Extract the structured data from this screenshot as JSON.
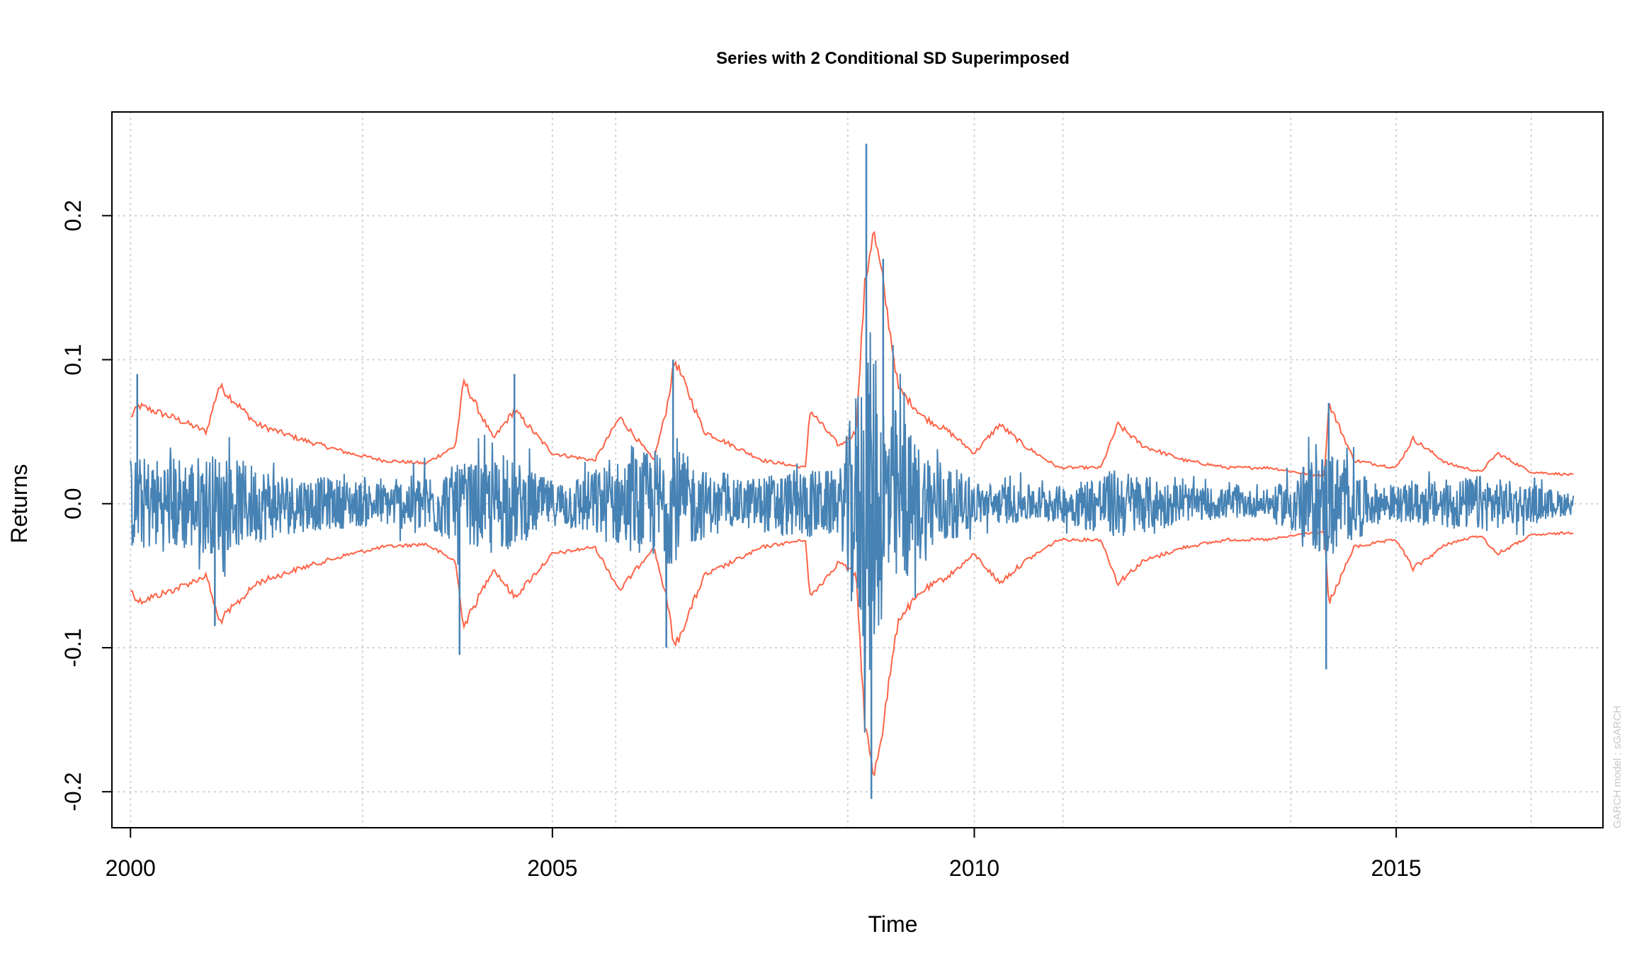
{
  "chart_data": {
    "type": "line",
    "title": "Series with 2 Conditional SD Superimposed",
    "xlabel": "Time",
    "ylabel": "Returns",
    "xlim": [
      1999.78,
      2017.45
    ],
    "ylim": [
      -0.225,
      0.272
    ],
    "x_ticks": [
      2000,
      2005,
      2010,
      2015
    ],
    "x_tick_labels": [
      "2000",
      "2005",
      "2010",
      "2015"
    ],
    "y_ticks": [
      -0.2,
      -0.1,
      0.0,
      0.1,
      0.2
    ],
    "y_tick_labels": [
      "-0.2",
      "-0.1",
      "0.0",
      "0.1",
      "0.2"
    ],
    "x_grid": [
      2000,
      2002.75,
      2005,
      2005.75,
      2008.5,
      2010,
      2011.05,
      2013.75,
      2015,
      2016.6
    ],
    "y_grid": [
      -0.2,
      -0.1,
      0.0,
      0.1,
      0.2
    ],
    "grid": true,
    "watermark": "GARCH model : sGARCH",
    "series": [
      {
        "role": "returns",
        "color": "#4682B4",
        "x": [
          2000.0,
          2001.0,
          2002.0,
          2003.0,
          2003.9,
          2004.5,
          2005.0,
          2006.4,
          2007.0,
          2008.0,
          2008.4,
          2008.75,
          2008.9,
          2009.3,
          2010.0,
          2011.0,
          2011.7,
          2012.5,
          2013.5,
          2014.2,
          2014.7,
          2015.0,
          2016.0,
          2017.1
        ],
        "amplitude": [
          0.065,
          0.07,
          0.04,
          0.03,
          0.055,
          0.065,
          0.03,
          0.085,
          0.03,
          0.05,
          0.045,
          0.25,
          0.17,
          0.09,
          0.03,
          0.025,
          0.05,
          0.025,
          0.018,
          0.08,
          0.03,
          0.025,
          0.04,
          0.015
        ],
        "extremes": [
          {
            "x": 2000.08,
            "y": 0.09
          },
          {
            "x": 2001.0,
            "y": -0.085
          },
          {
            "x": 2003.9,
            "y": -0.105
          },
          {
            "x": 2004.55,
            "y": 0.09
          },
          {
            "x": 2006.35,
            "y": -0.1
          },
          {
            "x": 2006.43,
            "y": 0.1
          },
          {
            "x": 2008.72,
            "y": 0.25
          },
          {
            "x": 2008.78,
            "y": -0.205
          },
          {
            "x": 2008.92,
            "y": 0.17
          },
          {
            "x": 2014.17,
            "y": -0.115
          },
          {
            "x": 2014.2,
            "y": 0.07
          }
        ]
      },
      {
        "role": "2 conditional SD",
        "color": "#FF6347",
        "x": [
          2000.0,
          2000.1,
          2000.5,
          2000.9,
          2001.05,
          2001.5,
          2002.0,
          2002.6,
          2003.0,
          2003.5,
          2003.85,
          2003.95,
          2004.3,
          2004.55,
          2005.0,
          2005.5,
          2005.8,
          2006.2,
          2006.35,
          2006.45,
          2006.8,
          2007.5,
          2008.0,
          2008.05,
          2008.4,
          2008.6,
          2008.7,
          2008.8,
          2008.9,
          2009.1,
          2009.4,
          2009.7,
          2010.0,
          2010.3,
          2010.6,
          2011.0,
          2011.5,
          2011.7,
          2012.0,
          2012.5,
          2013.0,
          2013.5,
          2014.0,
          2014.15,
          2014.2,
          2014.5,
          2015.0,
          2015.2,
          2015.6,
          2016.0,
          2016.2,
          2016.6,
          2017.1
        ],
        "sd2": [
          0.06,
          0.068,
          0.06,
          0.05,
          0.082,
          0.055,
          0.045,
          0.035,
          0.03,
          0.028,
          0.04,
          0.085,
          0.045,
          0.065,
          0.035,
          0.03,
          0.06,
          0.03,
          0.065,
          0.1,
          0.05,
          0.03,
          0.025,
          0.065,
          0.04,
          0.05,
          0.15,
          0.19,
          0.16,
          0.08,
          0.06,
          0.05,
          0.035,
          0.055,
          0.04,
          0.025,
          0.025,
          0.055,
          0.04,
          0.03,
          0.025,
          0.025,
          0.02,
          0.02,
          0.07,
          0.03,
          0.025,
          0.045,
          0.028,
          0.022,
          0.035,
          0.022,
          0.02
        ]
      }
    ]
  }
}
